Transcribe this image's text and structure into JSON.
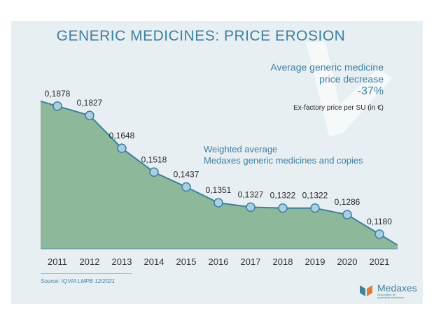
{
  "chart_data": {
    "type": "area",
    "title": "GENERIC MEDICINES: PRICE EROSION",
    "x": [
      "2011",
      "2012",
      "2013",
      "2014",
      "2015",
      "2016",
      "2017",
      "2018",
      "2019",
      "2020",
      "2021"
    ],
    "data_labels": [
      "0,1878",
      "0,1827",
      "0,1648",
      "0,1518",
      "0,1437",
      "0,1351",
      "0,1327",
      "0,1322",
      "0,1322",
      "0,1286",
      "0,1180"
    ],
    "series": [
      {
        "name": "Weighted average Medaxes generic medicines and copies",
        "values": [
          0.1878,
          0.1827,
          0.1648,
          0.1518,
          0.1437,
          0.1351,
          0.1327,
          0.1322,
          0.1322,
          0.1286,
          0.118
        ]
      }
    ],
    "ylim": [
      0.11,
      0.19
    ],
    "grid": false,
    "colors": {
      "area": "#8db89a",
      "line": "#3f7fa0",
      "marker": "#a9cfe0",
      "marker_stroke": "#3f7fa0",
      "background": "#e8eff3",
      "accent": "#3f7fa0"
    }
  },
  "annotation": {
    "avg_line1": "Average generic medicine",
    "avg_line2": "price decrease",
    "pct": "-37%",
    "unit": "Ex-factory price per SU (in €)"
  },
  "series_label": {
    "line1": "Weighted average",
    "line2": "Medaxes generic medicines and copies"
  },
  "source": "Source: IQVIA LMPB 12/2021",
  "logo": {
    "name": "Medaxes",
    "tagline_1": "Association for",
    "tagline_2": "accessible medicines"
  }
}
